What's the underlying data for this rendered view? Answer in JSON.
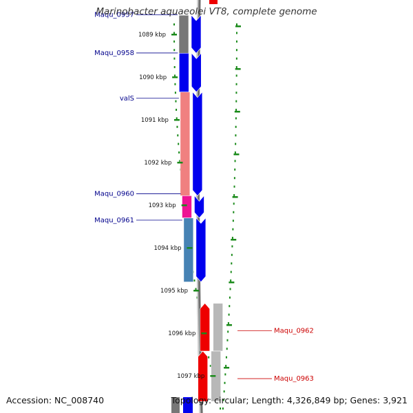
{
  "title": "Marinobacter aquaeolei VT8, complete genome",
  "accession": "Accession: NC_008740",
  "topology": "Topology: circular; Length: 4,326,849 bp; Genes: 3,921",
  "ticks": [
    {
      "label": "1089 kbp",
      "kbp": 1089
    },
    {
      "label": "1090 kbp",
      "kbp": 1090
    },
    {
      "label": "1091 kbp",
      "kbp": 1091
    },
    {
      "label": "1092 kbp",
      "kbp": 1092
    },
    {
      "label": "1093 kbp",
      "kbp": 1093
    },
    {
      "label": "1094 kbp",
      "kbp": 1094
    },
    {
      "label": "1095 kbp",
      "kbp": 1095
    },
    {
      "label": "1096 kbp",
      "kbp": 1096
    },
    {
      "label": "1097 kbp",
      "kbp": 1097
    }
  ],
  "genes": [
    {
      "name": "Maqu_0957",
      "strand": "+",
      "start_kbp": 1088.55,
      "end_kbp": 1089.44,
      "class_color": "#777777",
      "label_color": "#00008b",
      "label_side": "left"
    },
    {
      "name": "Maqu_0958",
      "strand": "+",
      "start_kbp": 1089.44,
      "end_kbp": 1090.35,
      "class_color": "#0000ee",
      "label_color": "#00008b",
      "label_side": "left"
    },
    {
      "name": "valS",
      "strand": "+",
      "start_kbp": 1090.35,
      "end_kbp": 1092.78,
      "class_color": "#f08080",
      "label_color": "#00008b",
      "label_side": "left"
    },
    {
      "name": "Maqu_0960",
      "strand": "+",
      "start_kbp": 1092.78,
      "end_kbp": 1093.3,
      "class_color": "#ee1493",
      "label_color": "#00008b",
      "label_side": "left"
    },
    {
      "name": "Maqu_0961",
      "strand": "+",
      "start_kbp": 1093.3,
      "end_kbp": 1094.8,
      "class_color": "#4682b4",
      "label_color": "#00008b",
      "label_side": "left"
    },
    {
      "name": "Maqu_0962",
      "strand": "-",
      "start_kbp": 1095.3,
      "end_kbp": 1096.42,
      "class_color": "#b8b8b8",
      "label_color": "#cc0000",
      "label_side": "right"
    },
    {
      "name": "Maqu_0963",
      "strand": "-",
      "start_kbp": 1096.42,
      "end_kbp": 1097.6,
      "class_color": "#b8b8b8",
      "label_color": "#cc0000",
      "label_side": "right"
    }
  ]
}
